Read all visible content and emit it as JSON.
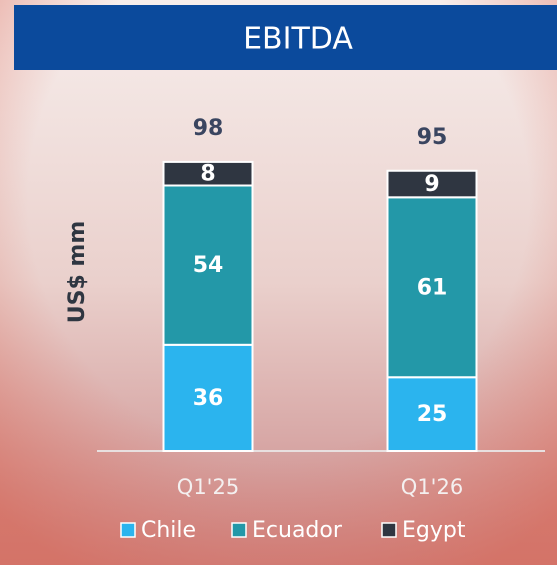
{
  "chart_data": {
    "type": "stacked_bar",
    "title": "EBITDA",
    "y_label": "US$ mm",
    "categories": [
      "Q1'25",
      "Q1'26"
    ],
    "series": [
      {
        "name": "Chile",
        "color": "#2bb4ee",
        "values": [
          36,
          25
        ]
      },
      {
        "name": "Ecuador",
        "color": "#2398a8",
        "values": [
          54,
          61
        ]
      },
      {
        "name": "Egypt",
        "color": "#2f3641",
        "values": [
          8,
          9
        ]
      }
    ],
    "totals": [
      98,
      95
    ]
  }
}
